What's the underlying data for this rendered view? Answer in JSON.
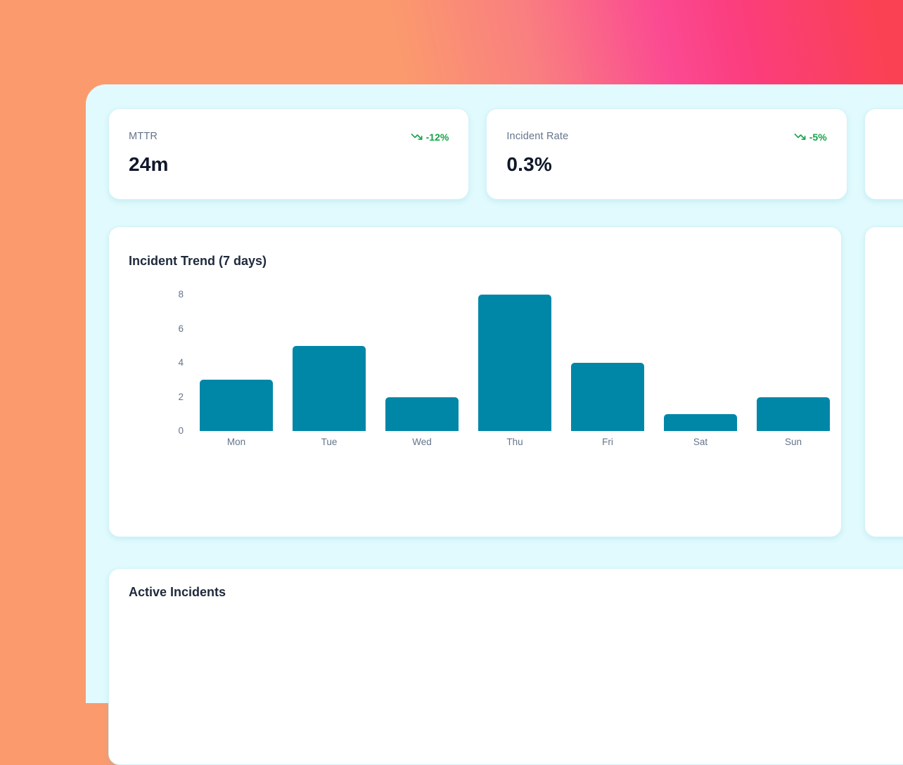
{
  "colors": {
    "bg_orange": "#fb9a6d",
    "bg_pink": "#fb3e7f",
    "bg_red": "#fa4154",
    "panel_bg": "#e1fafd",
    "card_border": "#d5f3f8",
    "bar_teal": "#0087a8",
    "trend_green": "#16a34a",
    "label_gray": "#64748b",
    "value_dark": "#0f172a"
  },
  "stats": [
    {
      "label": "MTTR",
      "value": "24m",
      "trend": "-12%",
      "trend_direction": "down"
    },
    {
      "label": "Incident Rate",
      "value": "0.3%",
      "trend": "-5%",
      "trend_direction": "down"
    }
  ],
  "chart_card": {
    "title": "Incident Trend (7 days)"
  },
  "chart_data": {
    "type": "bar",
    "title": "Incident Trend (7 days)",
    "categories": [
      "Mon",
      "Tue",
      "Wed",
      "Thu",
      "Fri",
      "Sat",
      "Sun"
    ],
    "values": [
      3,
      5,
      2,
      8,
      4,
      1,
      2
    ],
    "yticks": [
      0,
      2,
      4,
      6,
      8
    ],
    "ylim": [
      0,
      8
    ],
    "xlabel": "",
    "ylabel": "",
    "grid": false,
    "legend": false,
    "bar_color": "#0087a8"
  },
  "active_card": {
    "title": "Active Incidents"
  }
}
